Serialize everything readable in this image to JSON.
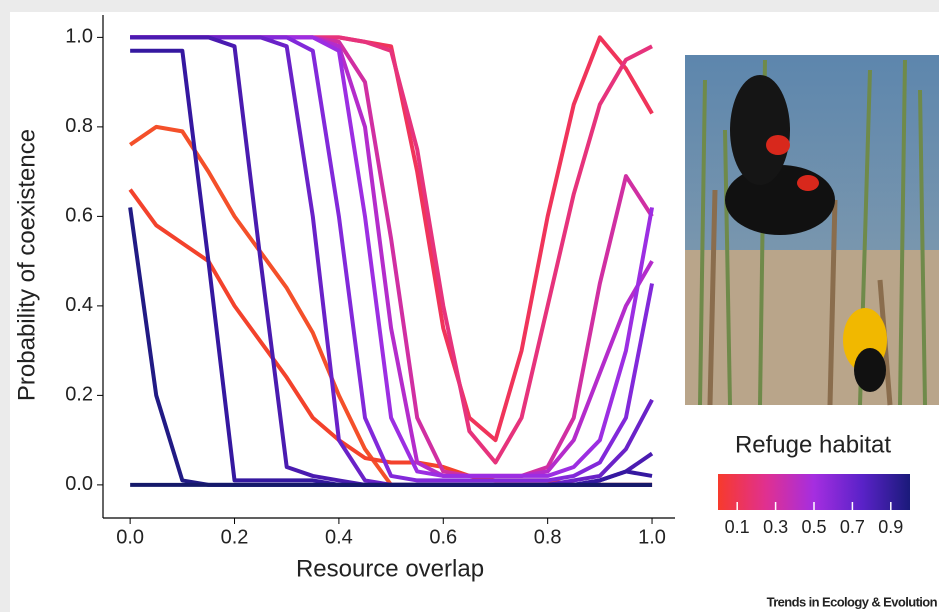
{
  "chart_data": {
    "type": "line",
    "x_label": "Resource overlap",
    "y_label": "Probability of coexistence",
    "x": [
      0,
      0.05,
      0.1,
      0.15,
      0.2,
      0.25,
      0.3,
      0.35,
      0.4,
      0.45,
      0.5,
      0.55,
      0.6,
      0.65,
      0.7,
      0.75,
      0.8,
      0.85,
      0.9,
      0.95,
      1.0
    ],
    "series": [
      {
        "color": "#f4502a",
        "values": [
          0.76,
          0.8,
          0.79,
          0.7,
          0.6,
          0.52,
          0.44,
          0.34,
          0.2,
          0.08,
          0,
          0,
          0,
          0,
          0,
          0,
          0,
          0,
          0,
          0,
          0
        ]
      },
      {
        "color": "#f3422c",
        "values": [
          0.66,
          0.58,
          0.54,
          0.5,
          0.4,
          0.32,
          0.24,
          0.15,
          0.1,
          0.06,
          0.05,
          0.05,
          0.04,
          0.02,
          0.01,
          0.01,
          0.01,
          0,
          0,
          0,
          0
        ]
      },
      {
        "color": "#f0345a",
        "values": [
          1,
          1,
          1,
          1,
          1,
          1,
          1,
          1,
          1,
          0.99,
          0.98,
          0.7,
          0.35,
          0.15,
          0.1,
          0.3,
          0.6,
          0.85,
          1,
          0.93,
          0.83
        ]
      },
      {
        "color": "#e6337c",
        "values": [
          1,
          1,
          1,
          1,
          1,
          1,
          1,
          1,
          1,
          0.99,
          0.97,
          0.75,
          0.4,
          0.12,
          0.05,
          0.15,
          0.4,
          0.65,
          0.85,
          0.95,
          0.98
        ]
      },
      {
        "color": "#d02fa2",
        "values": [
          1,
          1,
          1,
          1,
          1,
          1,
          1,
          1,
          0.99,
          0.9,
          0.55,
          0.15,
          0.03,
          0.02,
          0.02,
          0.02,
          0.04,
          0.15,
          0.45,
          0.69,
          0.6
        ]
      },
      {
        "color": "#b42ccb",
        "values": [
          1,
          1,
          1,
          1,
          1,
          1,
          1,
          1,
          0.98,
          0.8,
          0.35,
          0.05,
          0.02,
          0.02,
          0.02,
          0.02,
          0.03,
          0.1,
          0.25,
          0.4,
          0.5
        ]
      },
      {
        "color": "#9c2ee2",
        "values": [
          1,
          1,
          1,
          1,
          1,
          1,
          1,
          1,
          0.97,
          0.6,
          0.15,
          0.03,
          0.02,
          0.02,
          0.02,
          0.02,
          0.02,
          0.04,
          0.1,
          0.3,
          0.62
        ]
      },
      {
        "color": "#8229da",
        "values": [
          1,
          1,
          1,
          1,
          1,
          1,
          1,
          0.97,
          0.6,
          0.15,
          0.02,
          0.01,
          0.01,
          0.01,
          0.01,
          0.01,
          0.01,
          0.02,
          0.05,
          0.15,
          0.45
        ]
      },
      {
        "color": "#6a22c8",
        "values": [
          1,
          1,
          1,
          1,
          1,
          1,
          0.98,
          0.6,
          0.1,
          0.01,
          0,
          0,
          0,
          0,
          0,
          0,
          0,
          0.01,
          0.02,
          0.08,
          0.19
        ]
      },
      {
        "color": "#4a1bb0",
        "values": [
          1,
          1,
          1,
          1,
          0.98,
          0.5,
          0.04,
          0.02,
          0.01,
          0,
          0,
          0,
          0,
          0,
          0,
          0,
          0,
          0,
          0.01,
          0.03,
          0.07
        ]
      },
      {
        "color": "#3518a0",
        "values": [
          0.97,
          0.97,
          0.97,
          0.5,
          0.01,
          0.01,
          0.01,
          0.01,
          0,
          0,
          0,
          0,
          0,
          0,
          0,
          0,
          0,
          0,
          0.01,
          0.03,
          0.02
        ]
      },
      {
        "color": "#211a84",
        "values": [
          0.62,
          0.2,
          0.01,
          0,
          0,
          0,
          0,
          0,
          0,
          0,
          0,
          0,
          0,
          0,
          0,
          0,
          0,
          0,
          0,
          0,
          0
        ]
      },
      {
        "color": "#15196a",
        "values": [
          0,
          0,
          0,
          0,
          0,
          0,
          0,
          0,
          0,
          0,
          0,
          0,
          0,
          0,
          0,
          0,
          0,
          0,
          0,
          0,
          0
        ]
      }
    ],
    "xlim": [
      -0.052,
      1.044
    ],
    "ylim": [
      -0.074,
      1.05
    ],
    "xticks": [
      {
        "value": 0,
        "label": "0.0"
      },
      0.2,
      0.4,
      0.6,
      0.8,
      {
        "value": 1,
        "label": "1.0"
      }
    ],
    "yticks": [
      {
        "value": 0,
        "label": "0.0"
      },
      0.2,
      0.4,
      0.6,
      0.8,
      {
        "value": 1,
        "label": "1.0"
      }
    ],
    "colorbar": {
      "title": "Refuge habitat",
      "colors": [
        "#f73a2c",
        "#e03090",
        "#a52ee0",
        "#5a22c8",
        "#1a1a7a"
      ],
      "lim": [
        0,
        1
      ],
      "ticks": [
        0.1,
        0.3,
        0.5,
        0.7,
        0.9
      ]
    },
    "source": "Trends in Ecology & Evolution"
  }
}
